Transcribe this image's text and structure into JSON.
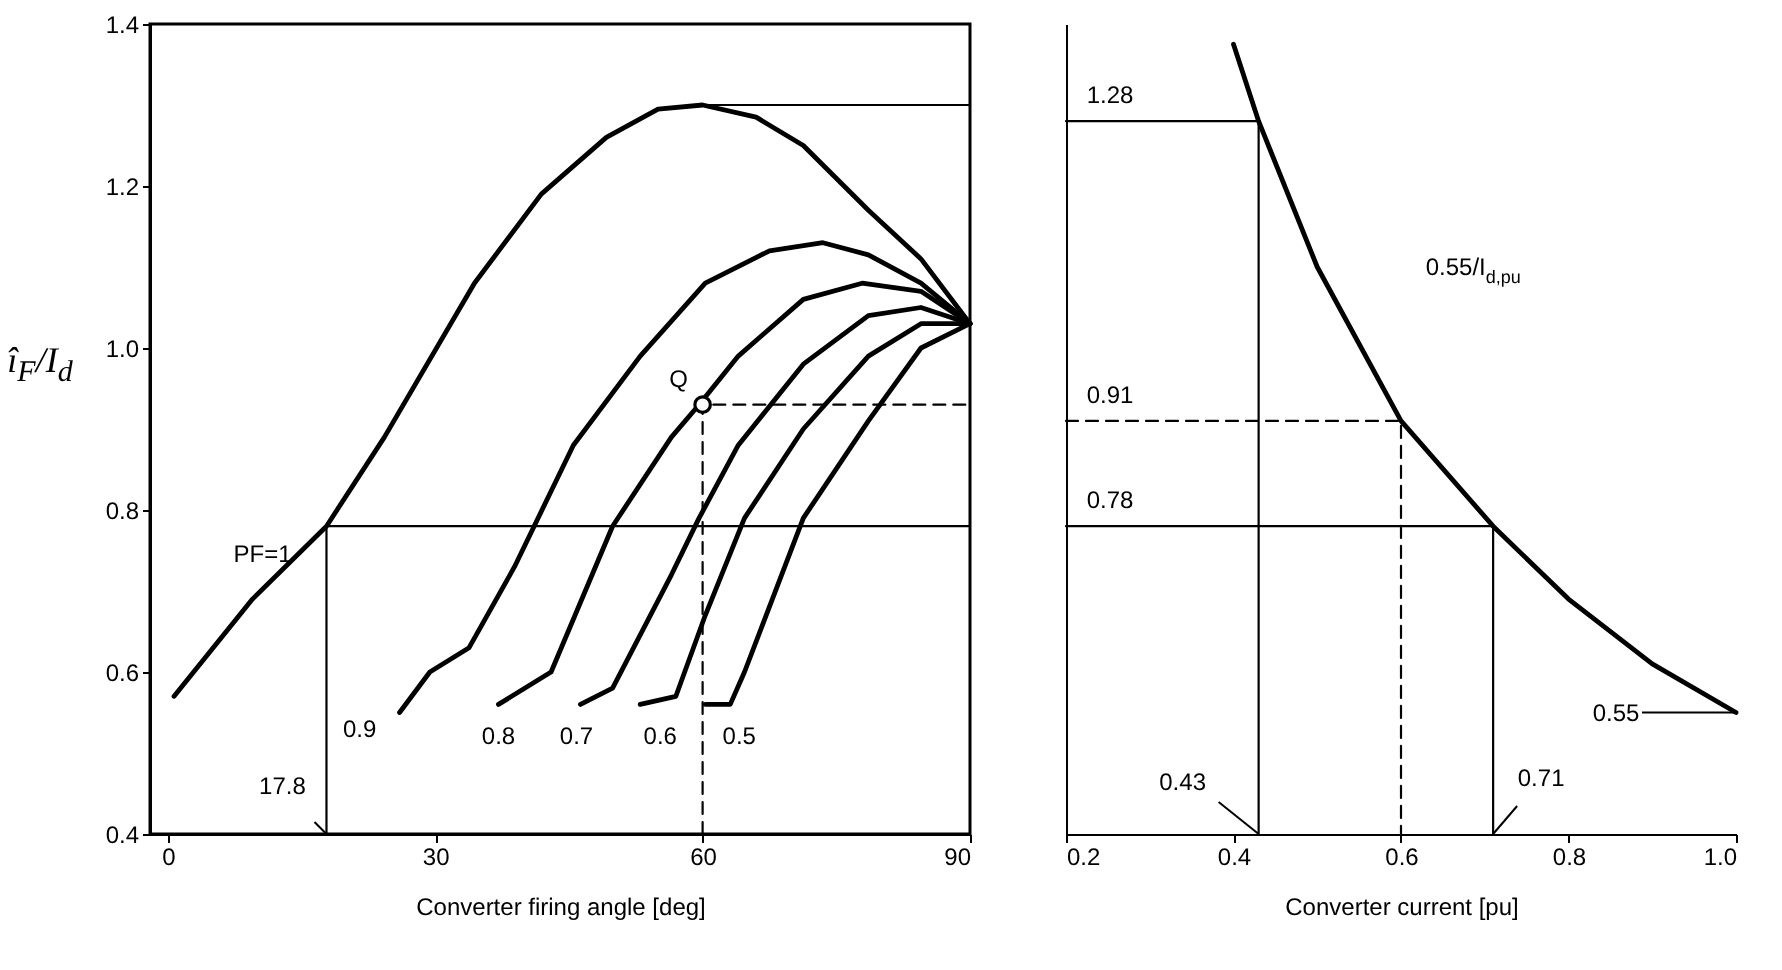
{
  "chart_data": [
    {
      "type": "line",
      "xlabel": "Converter firing angle [deg]",
      "ylabel": "î$_{F}$/I$_{d}$",
      "xlim": [
        -2,
        90
      ],
      "xticks": [
        0,
        30,
        60,
        90
      ],
      "ylim": [
        0.4,
        1.4
      ],
      "yticks": [
        0.4,
        0.6,
        0.8,
        {
          "value": 1,
          "label": "1.0"
        },
        1.2,
        1.4
      ],
      "series": [
        {
          "name": "PF=1",
          "color": "#000000",
          "x": [
            0.7,
            9.5,
            17.8,
            24.3,
            34.4,
            41.9,
            49.2,
            55,
            60,
            66,
            71.3,
            78.6,
            84.5,
            90
          ],
          "values": [
            0.57,
            0.69,
            0.78,
            0.89,
            1.08,
            1.19,
            1.26,
            1.295,
            1.3,
            1.285,
            1.25,
            1.17,
            1.11,
            1.03
          ]
        },
        {
          "name": "0.9",
          "color": "#000000",
          "x": [
            26,
            29.4,
            33.8,
            38.9,
            45.5,
            53,
            60.3,
            67.5,
            73.5,
            78.6,
            84.5,
            90
          ],
          "values": [
            0.55,
            0.6,
            0.63,
            0.73,
            0.88,
            0.99,
            1.08,
            1.12,
            1.13,
            1.115,
            1.08,
            1.03
          ]
        },
        {
          "name": "0.8",
          "color": "#000000",
          "x": [
            37.1,
            43,
            49.9,
            56.5,
            59.6,
            64,
            71.3,
            77.9,
            84.5,
            90
          ],
          "values": [
            0.56,
            0.6,
            0.78,
            0.89,
            0.93,
            0.99,
            1.06,
            1.08,
            1.07,
            1.03
          ]
        },
        {
          "name": "0.7",
          "color": "#000000",
          "x": [
            46.3,
            49.9,
            56.5,
            59.6,
            64,
            71.3,
            78.6,
            84.5,
            90
          ],
          "values": [
            0.56,
            0.58,
            0.72,
            0.79,
            0.88,
            0.98,
            1.04,
            1.05,
            1.03
          ]
        },
        {
          "name": "0.6",
          "color": "#000000",
          "x": [
            53,
            57,
            60.3,
            64.7,
            71.3,
            78.6,
            84.5,
            90
          ],
          "values": [
            0.56,
            0.57,
            0.67,
            0.79,
            0.9,
            0.99,
            1.03,
            1.03
          ]
        },
        {
          "name": "0.5",
          "color": "#000000",
          "x": [
            60.3,
            63.1,
            64.7,
            71.3,
            78.6,
            84.5,
            90
          ],
          "values": [
            0.56,
            0.56,
            0.6,
            0.79,
            0.91,
            1.0,
            1.03
          ]
        },
        {
          "color": "#000000",
          "line_style": "solid",
          "x": [
            17.8,
            17.8,
            90
          ],
          "values": [
            0.4,
            0.78,
            0.78
          ]
        },
        {
          "color": "#000000",
          "line_style": "solid",
          "x": [
            60,
            90
          ],
          "values": [
            1.3,
            1.3
          ]
        },
        {
          "color": "#000000",
          "line_style": "dashed",
          "x": [
            60,
            60,
            90
          ],
          "values": [
            0.4,
            0.93,
            0.93
          ]
        },
        {
          "type": "scatter",
          "marker": "circle",
          "color": "#000000",
          "x": [
            60
          ],
          "values": [
            0.93
          ]
        }
      ],
      "annotations": [
        {
          "text": "Q",
          "x": 60,
          "y": 0.93
        },
        {
          "text": "17.8",
          "x": 17.8,
          "y": 0.4
        }
      ]
    },
    {
      "type": "line",
      "xlabel": "Converter current [pu]",
      "xlim": [
        0.2,
        1.0
      ],
      "xticks": [
        0.2,
        0.4,
        0.6,
        0.8,
        {
          "value": 1,
          "label": "1.0"
        }
      ],
      "ylim": [
        0.4,
        1.4
      ],
      "tick_labels": "x",
      "series": [
        {
          "name": "0.55/I$_{d,pu}$",
          "color": "#000000",
          "x": [
            0.4,
            0.43,
            0.5,
            0.6,
            0.71,
            0.8,
            0.9,
            1.0
          ],
          "values": [
            1.375,
            1.28,
            1.1,
            0.91,
            0.78,
            0.69,
            0.61,
            0.55
          ],
          "value_labels": [
            null,
            null,
            null,
            null,
            null,
            null,
            null,
            "0.55"
          ]
        },
        {
          "color": "#000000",
          "line_style": "solid",
          "x": [
            0.2,
            0.43,
            0.43
          ],
          "values": [
            1.28,
            1.28,
            0.4
          ]
        },
        {
          "color": "#000000",
          "line_style": "solid",
          "x": [
            0.2,
            0.71,
            0.71
          ],
          "values": [
            0.78,
            0.78,
            0.4
          ]
        },
        {
          "color": "#000000",
          "line_style": "dashed",
          "x": [
            0.2,
            0.6,
            0.6
          ],
          "values": [
            0.91,
            0.91,
            0.4
          ]
        }
      ],
      "annotations": [
        {
          "text": "1.28",
          "x": 0.2,
          "y": 1.28
        },
        {
          "text": "0.91",
          "x": 0.2,
          "y": 0.91
        },
        {
          "text": "0.78",
          "x": 0.2,
          "y": 0.78
        },
        {
          "text": "0.43",
          "x": 0.43,
          "y": 0.4
        },
        {
          "text": "0.71",
          "x": 0.71,
          "y": 0.4
        }
      ]
    }
  ]
}
